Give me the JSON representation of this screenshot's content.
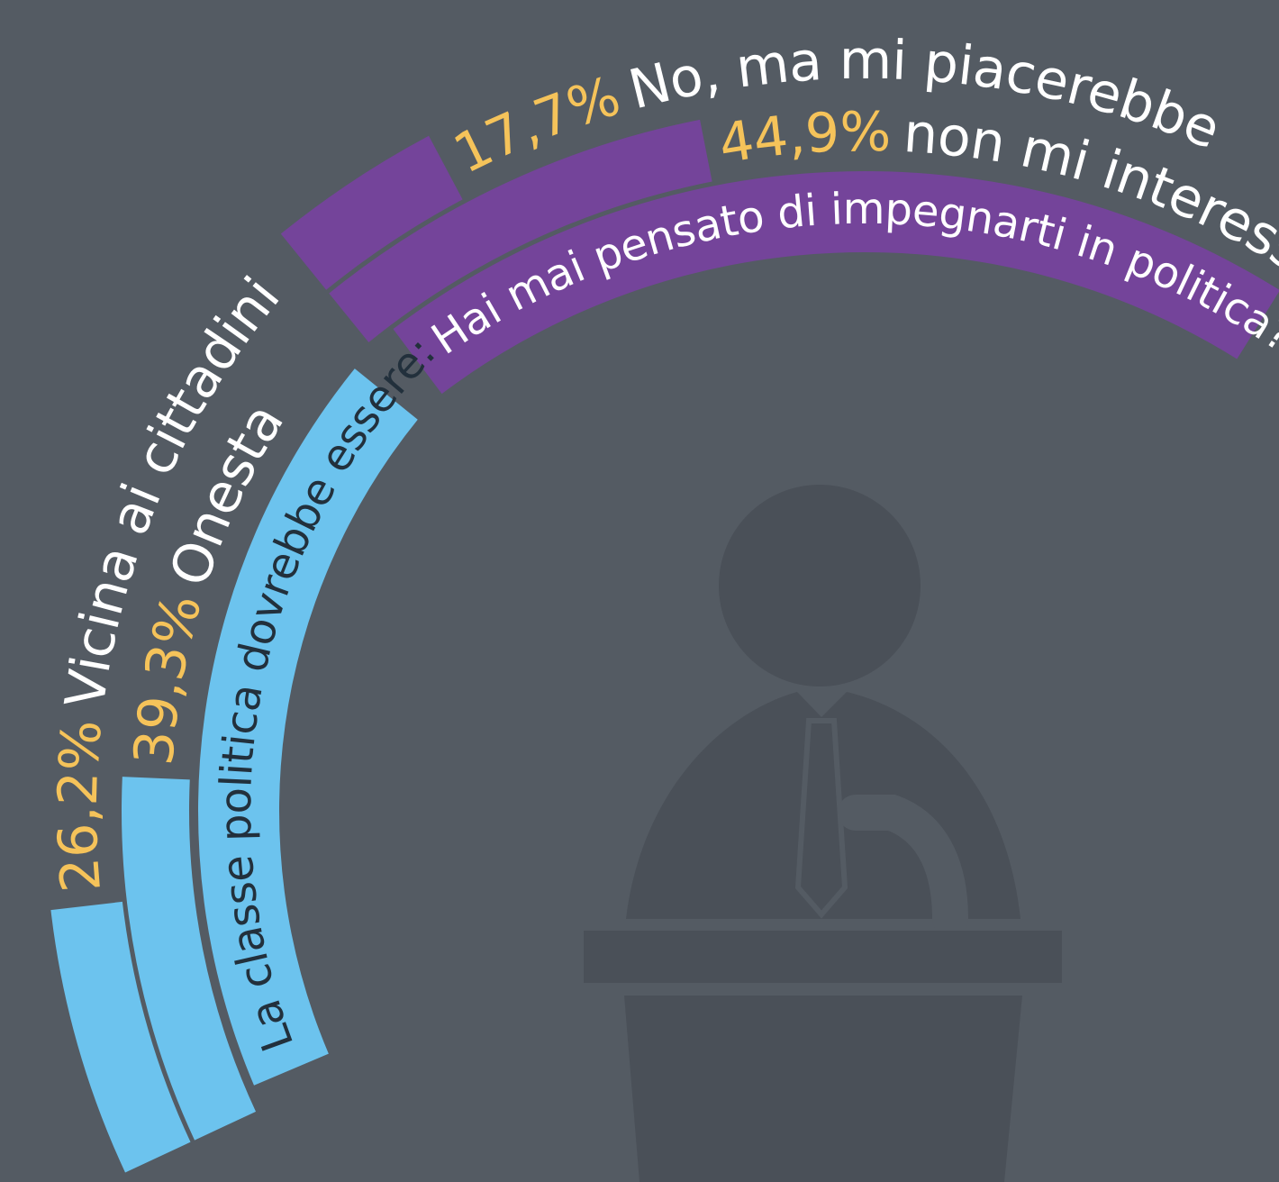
{
  "chart_data": [
    {
      "type": "radial-bar",
      "title": "Hai mai pensato di impegnarti in politica?",
      "categories": [
        "non mi interessa",
        "No, ma mi piacerebbe"
      ],
      "values": [
        44.9,
        17.7
      ],
      "value_labels": [
        "44,9%",
        "17,7%"
      ],
      "color": "#74449a",
      "title_color": "#ffffff"
    },
    {
      "type": "radial-bar",
      "title": "La classe politica dovrebbe essere:",
      "categories": [
        "Onesta",
        "Vicina ai cittadini"
      ],
      "values": [
        39.3,
        26.2
      ],
      "value_labels": [
        "39,3%",
        "26,2%"
      ],
      "color": "#6cc3ee",
      "title_color": "#22303c"
    }
  ]
}
